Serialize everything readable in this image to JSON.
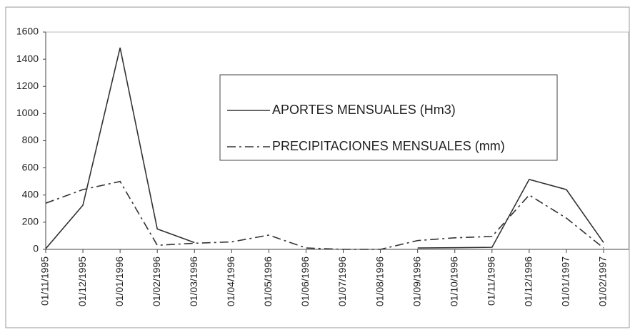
{
  "chart_data": {
    "type": "line",
    "categories": [
      "01/11/1995",
      "01/12/1995",
      "01/01/1996",
      "01/02/1996",
      "01/03/1996",
      "01/04/1996",
      "01/05/1996",
      "01/06/1996",
      "01/07/1996",
      "01/08/1996",
      "01/09/1996",
      "01/10/1996",
      "01/11/1996",
      "01/12/1996",
      "01/01/1997",
      "01/02/1997"
    ],
    "series": [
      {
        "name": "APORTES MENSUALES (Hm3)",
        "color": "#333333",
        "dash": "solid",
        "values": [
          5,
          325,
          1485,
          150,
          50,
          null,
          null,
          null,
          null,
          null,
          10,
          12,
          15,
          515,
          440,
          50
        ]
      },
      {
        "name": "PRECIPITACIONES MENSUALES (mm)",
        "color": "#333333",
        "dash": "dashdot",
        "values": [
          340,
          440,
          500,
          30,
          45,
          55,
          105,
          10,
          0,
          0,
          65,
          85,
          95,
          400,
          230,
          10
        ]
      }
    ],
    "ylim": [
      0,
      1600
    ],
    "yticks": [
      0,
      200,
      400,
      600,
      800,
      1000,
      1200,
      1400,
      1600
    ]
  }
}
